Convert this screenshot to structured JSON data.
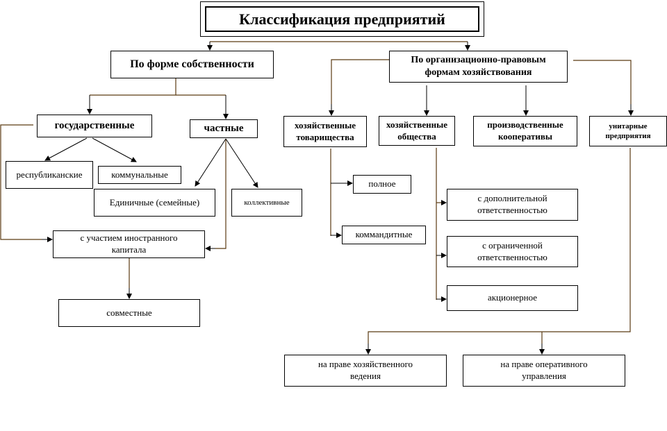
{
  "colors": {
    "connector": "#5a3a12",
    "arrow": "#000000"
  },
  "title": "Классификация предприятий",
  "ownership": {
    "label": "По форме собственности",
    "state": {
      "label": "государственные",
      "children": [
        "республиканские",
        "коммунальные"
      ]
    },
    "private": {
      "label": "частные",
      "children": [
        "Единичные (семейные)",
        "коллективные"
      ]
    },
    "foreign": "с участием иностранного капитала",
    "joint": "совместные"
  },
  "legal": {
    "label": "По организационно-правовым формам хозяйствования",
    "partnerships": {
      "label": "хозяйственные товарищества",
      "children": [
        "полное",
        "коммандитные"
      ]
    },
    "companies": {
      "label": "хозяйственные общества",
      "children": [
        "с дополнительной ответственностью",
        "с ограниченной ответственностью",
        "акционерное"
      ]
    },
    "cooperatives": "производственные кооперативы",
    "unitary": {
      "label": "унитарные предприятия",
      "children": [
        "на праве хозяйственного ведения",
        "на праве оперативного управления"
      ]
    }
  }
}
